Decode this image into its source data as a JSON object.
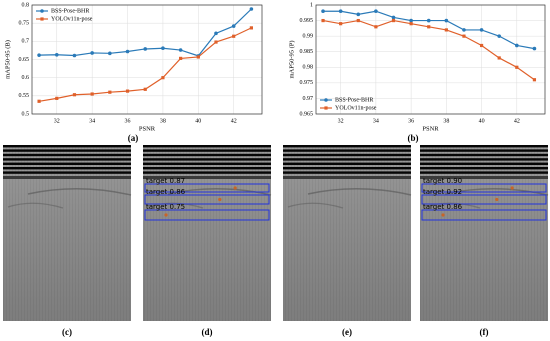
{
  "chart_data": [
    {
      "type": "line",
      "caption": "(a)",
      "xlabel": "PSNR",
      "ylabel": "mAP50-95 (B)",
      "legend": "upper left",
      "grid": true,
      "x": [
        31,
        32,
        33,
        34,
        35,
        36,
        37,
        38,
        39,
        40,
        41,
        42,
        43
      ],
      "xlim": [
        30.6,
        43.6
      ],
      "xticks": [
        32,
        34,
        36,
        38,
        40,
        42
      ],
      "ylim": [
        0.5,
        0.8
      ],
      "yticks": [
        0.5,
        0.55,
        0.6,
        0.65,
        0.7,
        0.75,
        0.8
      ],
      "series": [
        {
          "name": "BSS-Pose-BHR",
          "color": "#2a7ab8",
          "values": [
            0.662,
            0.663,
            0.661,
            0.668,
            0.667,
            0.672,
            0.679,
            0.681,
            0.676,
            0.66,
            0.722,
            0.742,
            0.789
          ]
        },
        {
          "name": "YOLOv11n-pose",
          "color": "#e0602a",
          "values": [
            0.535,
            0.543,
            0.553,
            0.555,
            0.56,
            0.563,
            0.568,
            0.6,
            0.653,
            0.657,
            0.698,
            0.714,
            0.737
          ]
        }
      ]
    },
    {
      "type": "line",
      "caption": "(b)",
      "xlabel": "PSNR",
      "ylabel": "mAP50-95 (P)",
      "legend": "lower left",
      "grid": true,
      "x": [
        31,
        32,
        33,
        34,
        35,
        36,
        37,
        38,
        39,
        40,
        41,
        42,
        43
      ],
      "xlim": [
        30.6,
        43.6
      ],
      "xticks": [
        32,
        34,
        36,
        38,
        40,
        42
      ],
      "ylim": [
        0.965,
        1
      ],
      "yticks": [
        0.965,
        0.97,
        0.975,
        0.98,
        0.985,
        0.99,
        0.995,
        1
      ],
      "series": [
        {
          "name": "BSS-Pose-BHR",
          "color": "#2a7ab8",
          "values": [
            0.998,
            0.998,
            0.997,
            0.998,
            0.996,
            0.995,
            0.995,
            0.995,
            0.992,
            0.992,
            0.99,
            0.987,
            0.986
          ]
        },
        {
          "name": "YOLOv11n-pose",
          "color": "#e0602a",
          "values": [
            0.995,
            0.994,
            0.995,
            0.993,
            0.995,
            0.994,
            0.993,
            0.992,
            0.99,
            0.987,
            0.983,
            0.98,
            0.976
          ]
        }
      ]
    }
  ],
  "images": [
    {
      "caption": "(c)",
      "detections": []
    },
    {
      "caption": "(d)",
      "detections": [
        {
          "label": "target 0.87"
        },
        {
          "label": "target 0.86"
        },
        {
          "label": "target 0.75"
        }
      ]
    },
    {
      "caption": "(e)",
      "detections": []
    },
    {
      "caption": "(f)",
      "detections": [
        {
          "label": "target 0.90"
        },
        {
          "label": "target 0.92"
        },
        {
          "label": "target 0.86"
        }
      ]
    }
  ]
}
